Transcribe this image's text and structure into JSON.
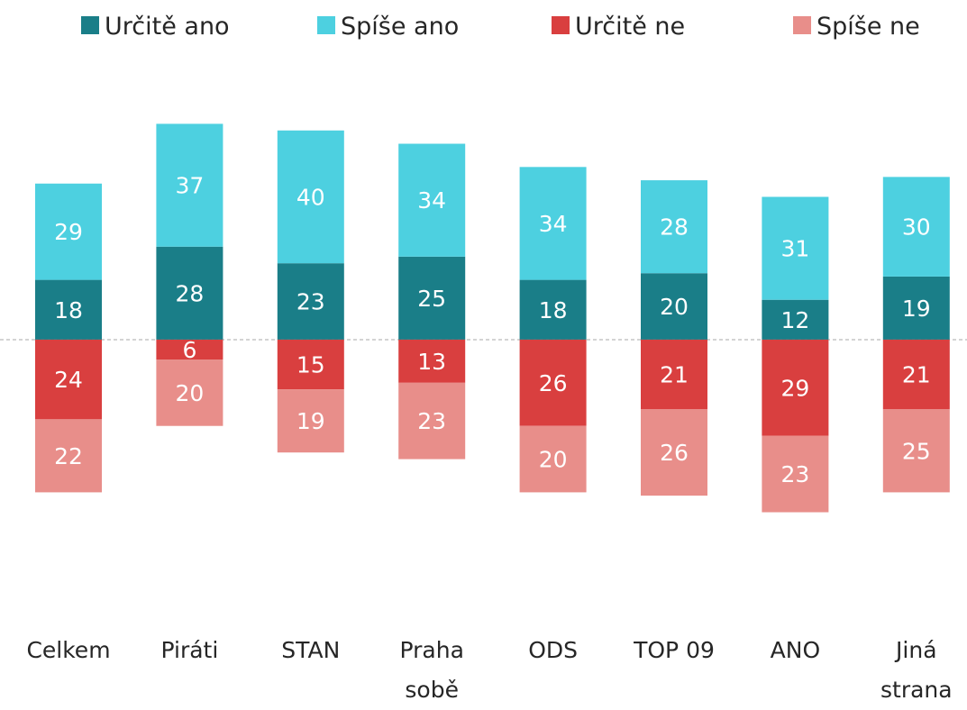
{
  "chart_data": {
    "type": "diverging-bar",
    "categories": [
      "Celkem",
      "Piráti",
      "STAN",
      "Praha sobě",
      "ODS",
      "TOP 09",
      "ANO",
      "Jiná strana"
    ],
    "series": [
      {
        "name": "Určitě ano",
        "color": "#1a7e88",
        "direction": "up",
        "values": [
          18,
          28,
          23,
          25,
          18,
          20,
          12,
          19
        ]
      },
      {
        "name": "Spíše ano",
        "color": "#4dd0e0",
        "direction": "up",
        "values": [
          29,
          37,
          40,
          34,
          34,
          28,
          31,
          30
        ]
      },
      {
        "name": "Určitě ne",
        "color": "#d93f3f",
        "direction": "down",
        "values": [
          24,
          6,
          15,
          13,
          26,
          21,
          29,
          21
        ]
      },
      {
        "name": "Spíše ne",
        "color": "#e88e8a",
        "direction": "down",
        "values": [
          22,
          20,
          19,
          23,
          20,
          26,
          23,
          25
        ]
      }
    ],
    "ylim": [
      -60,
      70
    ]
  }
}
